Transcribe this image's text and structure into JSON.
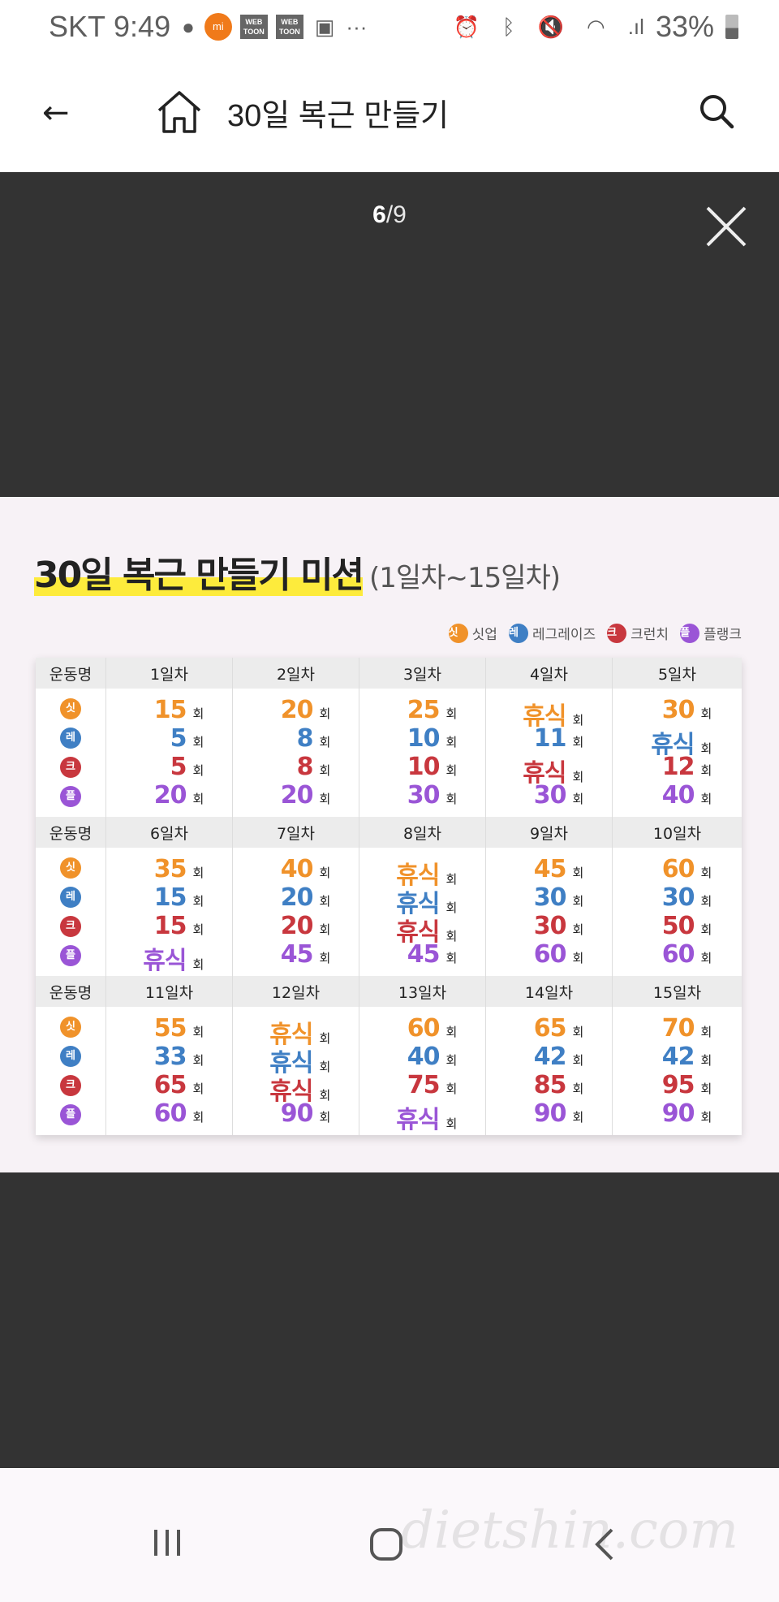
{
  "status": {
    "carrier": "SKT",
    "time": "9:49",
    "battery": "33%",
    "icons": [
      "piggy-bank-icon",
      "mi-app-icon",
      "webtoon-icon",
      "webtoon-icon",
      "image-icon",
      "more-icon",
      "alarm-icon",
      "bluetooth-icon",
      "mute-icon",
      "wifi-icon",
      "signal-icon",
      "battery-icon"
    ],
    "mi_label": "mi",
    "webtoon_label": "WEB TOON",
    "more": "···"
  },
  "appbar": {
    "title": "30일 복근 만들기"
  },
  "viewer": {
    "current": "6",
    "total": "/9"
  },
  "mission": {
    "title": "30일 복근 만들기 미션",
    "subtitle": "(1일차~15일차)",
    "unit": "회",
    "row_header": "운동명",
    "exercises": [
      {
        "badge": "싯",
        "name": "싯업",
        "color": "#f0922a"
      },
      {
        "badge": "레",
        "name": "레그레이즈",
        "color": "#3f7fc4"
      },
      {
        "badge": "크",
        "name": "크런치",
        "color": "#c8373e"
      },
      {
        "badge": "플",
        "name": "플랭크",
        "color": "#9a55d6"
      }
    ],
    "blocks": [
      {
        "days": [
          {
            "label": "1일차",
            "values": [
              "15",
              "5",
              "5",
              "20"
            ]
          },
          {
            "label": "2일차",
            "values": [
              "20",
              "8",
              "8",
              "20"
            ]
          },
          {
            "label": "3일차",
            "values": [
              "25",
              "10",
              "10",
              "30"
            ]
          },
          {
            "label": "4일차",
            "values": [
              "휴식",
              "11",
              "휴식",
              "30"
            ]
          },
          {
            "label": "5일차",
            "values": [
              "30",
              "휴식",
              "12",
              "40"
            ]
          }
        ]
      },
      {
        "days": [
          {
            "label": "6일차",
            "values": [
              "35",
              "15",
              "15",
              "휴식"
            ]
          },
          {
            "label": "7일차",
            "values": [
              "40",
              "20",
              "20",
              "45"
            ]
          },
          {
            "label": "8일차",
            "values": [
              "휴식",
              "휴식",
              "휴식",
              "45"
            ]
          },
          {
            "label": "9일차",
            "values": [
              "45",
              "30",
              "30",
              "60"
            ]
          },
          {
            "label": "10일차",
            "values": [
              "60",
              "30",
              "50",
              "60"
            ]
          }
        ]
      },
      {
        "days": [
          {
            "label": "11일차",
            "values": [
              "55",
              "33",
              "65",
              "60"
            ]
          },
          {
            "label": "12일차",
            "values": [
              "휴식",
              "휴식",
              "휴식",
              "90"
            ]
          },
          {
            "label": "13일차",
            "values": [
              "60",
              "40",
              "75",
              "휴식"
            ]
          },
          {
            "label": "14일차",
            "values": [
              "65",
              "42",
              "85",
              "90"
            ]
          },
          {
            "label": "15일차",
            "values": [
              "70",
              "42",
              "95",
              "90"
            ]
          }
        ]
      }
    ]
  },
  "watermark": "dietshin.com"
}
